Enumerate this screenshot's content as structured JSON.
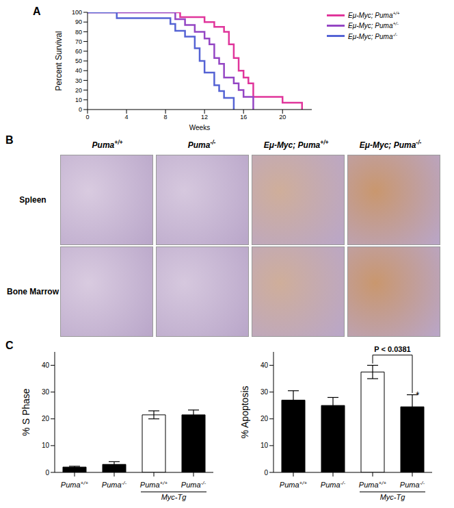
{
  "chart_data": [
    {
      "type": "line",
      "title": "A",
      "x_label": "Weeks",
      "y_label": "Percent Survival",
      "xlim": [
        0,
        23
      ],
      "xticks": [
        0,
        4,
        8,
        12,
        16,
        20
      ],
      "ylim": [
        0,
        100
      ],
      "yticks": [
        0,
        10,
        20,
        30,
        40,
        50,
        60,
        70,
        80,
        90,
        100
      ],
      "line_style": "step",
      "legend": "right",
      "series": [
        {
          "name": "Eμ-Myc; Puma+/+",
          "color": "#e0359b",
          "x": [
            0,
            9.5,
            12,
            13,
            14,
            14.5,
            15,
            15.5,
            16,
            16.5,
            17,
            20,
            22
          ],
          "values": [
            100,
            95,
            90,
            85,
            80,
            67,
            53,
            40,
            33,
            27,
            13,
            7,
            0
          ]
        },
        {
          "name": "Eμ-Myc; Puma+/-",
          "color": "#9446c4",
          "x": [
            0,
            9,
            10,
            11,
            12,
            12.5,
            13,
            13.5,
            14,
            15,
            15.5,
            16,
            17
          ],
          "values": [
            100,
            93,
            87,
            80,
            73,
            67,
            53,
            47,
            33,
            27,
            20,
            13,
            0
          ]
        },
        {
          "name": "Eμ-Myc; Puma-/-",
          "color": "#5563d4",
          "x": [
            0,
            3,
            8.5,
            9,
            10,
            11,
            11.5,
            12,
            13,
            13.5,
            14,
            15
          ],
          "values": [
            100,
            94,
            88,
            81,
            75,
            63,
            50,
            38,
            25,
            19,
            12,
            0
          ]
        }
      ]
    },
    {
      "type": "image_grid",
      "title": "B",
      "columns": [
        "Puma+/+",
        "Puma-/-",
        "Eμ-Myc; Puma+/+",
        "Eμ-Myc; Puma-/-"
      ],
      "rows": [
        "Spleen",
        "Bone Marrow"
      ]
    },
    {
      "type": "bar",
      "title": "C",
      "y_label": "% S Phase",
      "categories": [
        "Puma+/+",
        "Puma-/-",
        "Puma+/+",
        "Puma-/-"
      ],
      "values": [
        2,
        3,
        21.5,
        21.5
      ],
      "errors": [
        0.3,
        1,
        1.5,
        1.8
      ],
      "colors": [
        "#000000",
        "#000000",
        "#ffffff",
        "#000000"
      ],
      "ylim": [
        0,
        45
      ],
      "yticks": [
        0,
        10,
        20,
        30,
        40
      ],
      "group_label": "Myc-Tg"
    },
    {
      "type": "bar",
      "y_label": "% Apoptosis",
      "categories": [
        "Puma+/+",
        "Puma-/-",
        "Puma+/+",
        "Puma-/-"
      ],
      "values": [
        27,
        25,
        37.5,
        24.5
      ],
      "errors": [
        3.5,
        3,
        2.5,
        4.5
      ],
      "colors": [
        "#000000",
        "#000000",
        "#ffffff",
        "#000000"
      ],
      "ylim": [
        0,
        45
      ],
      "yticks": [
        0,
        10,
        20,
        30,
        40
      ],
      "group_label": "Myc-Tg",
      "annotations": [
        {
          "text": "P < 0.0381",
          "between": [
            2,
            3
          ]
        },
        {
          "text": "*",
          "category_index": 3
        }
      ]
    }
  ]
}
